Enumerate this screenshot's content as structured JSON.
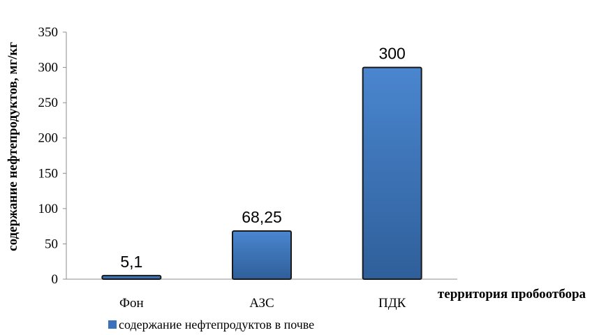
{
  "chart_data": {
    "type": "bar",
    "categories": [
      "Фон",
      "АЗС",
      "ПДК"
    ],
    "series": [
      {
        "name": "содержание нефтепродуктов в почве",
        "values": [
          5.1,
          68.25,
          300
        ]
      }
    ],
    "data_labels": [
      "5,1",
      "68,25",
      "300"
    ],
    "ylabel": "содержание нефтепродуктов, мг/кг",
    "xlabel": "территория пробоотбора",
    "ylim": [
      0,
      350
    ],
    "yticks": [
      0,
      50,
      100,
      150,
      200,
      250,
      300,
      350
    ],
    "grid": false,
    "legend_position": "bottom-left",
    "colors": {
      "bar_top": "#4a86cf",
      "bar_bottom": "#2f5f9a",
      "bar_outline": "#1a1a1a",
      "axis": "#8c8c8c",
      "text": "#000000"
    }
  }
}
